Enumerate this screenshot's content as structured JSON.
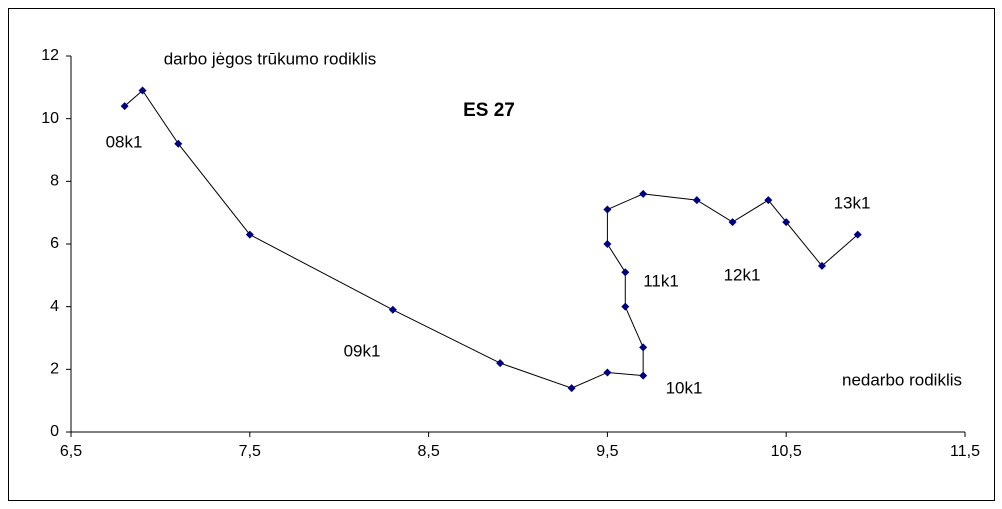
{
  "chart_data": {
    "type": "line",
    "title": "ES 27",
    "x_label": "nedarbo rodiklis",
    "y_label": "darbo jėgos trūkumo rodiklis",
    "annotations": [
      "08k1",
      "09k1",
      "10k1",
      "11k1",
      "12k1",
      "13k1"
    ],
    "x": [
      6.8,
      6.9,
      7.1,
      7.5,
      8.3,
      8.9,
      9.3,
      9.5,
      9.7,
      9.7,
      9.6,
      9.6,
      9.5,
      9.5,
      9.7,
      10.0,
      10.2,
      10.4,
      10.5,
      10.7,
      10.9
    ],
    "series": [
      {
        "color": "#000080",
        "line_color": "#000000",
        "values": [
          10.4,
          10.9,
          9.2,
          6.3,
          3.9,
          2.2,
          1.4,
          1.9,
          1.8,
          2.7,
          4.0,
          5.1,
          6.0,
          7.1,
          7.6,
          7.4,
          6.7,
          7.4,
          6.7,
          5.3,
          6.3
        ]
      }
    ],
    "xlim": [
      6.5,
      11.5
    ],
    "xticks": [
      {
        "value": 6.5,
        "label": "6,5"
      },
      {
        "value": 7.5,
        "label": "7,5"
      },
      {
        "value": 8.5,
        "label": "8,5"
      },
      {
        "value": 9.5,
        "label": "9,5"
      },
      {
        "value": 10.5,
        "label": "10,5"
      },
      {
        "value": 11.5,
        "label": "11,5"
      }
    ],
    "ylim": [
      0,
      12
    ],
    "yticks": [
      0,
      2,
      4,
      6,
      8,
      10,
      12
    ],
    "grid": false
  }
}
